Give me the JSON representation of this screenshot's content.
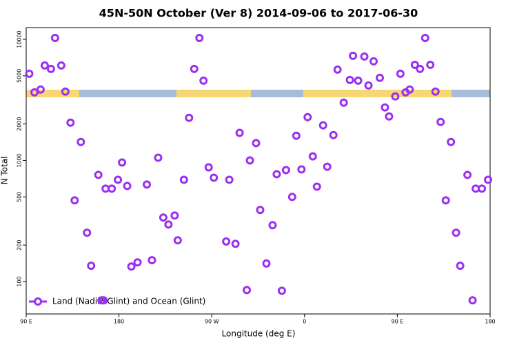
{
  "chart_data": {
    "type": "scatter",
    "title": "45N-50N October (Ver 8)   2014-09-06 to 2017-06-30",
    "x_label": "Longitude (deg E)",
    "y_label": "N Total",
    "log_y": true,
    "xlim": [
      90,
      540
    ],
    "ylim": [
      54,
      12500
    ],
    "xticks": [
      {
        "value": 90,
        "label": "90 E"
      },
      180,
      {
        "value": 270,
        "label": "90 W"
      },
      {
        "value": 360,
        "label": "0"
      },
      {
        "value": 450,
        "label": "90 E"
      },
      {
        "value": 540,
        "label": "180"
      }
    ],
    "yticks": [
      100,
      200,
      500,
      1000,
      2000,
      5000,
      10000
    ],
    "legend_position": "lower left",
    "series": [
      {
        "name": "Land (Nadir&Glint) and Ocean (Glint)",
        "color": "#9b30f0",
        "x": [
          93,
          98,
          104,
          108,
          114,
          118,
          124,
          128,
          133,
          143,
          137,
          149,
          153,
          160,
          163,
          165,
          167,
          173,
          179,
          183,
          188,
          192,
          198,
          207,
          212,
          218,
          223,
          228,
          234,
          237,
          243,
          248,
          253,
          258,
          262,
          267,
          272,
          284,
          287,
          293,
          297,
          304,
          307,
          313,
          317,
          323,
          329,
          333,
          338,
          342,
          348,
          352,
          357,
          363,
          368,
          372,
          378,
          382,
          388,
          392,
          398,
          404,
          407,
          412,
          418,
          422,
          427,
          433,
          438,
          442,
          448,
          453,
          458,
          462,
          467,
          472,
          477,
          482,
          487,
          492,
          502,
          497,
          507,
          511,
          518,
          523,
          526,
          532,
          538
        ],
        "values": [
          5200,
          3650,
          3850,
          6080,
          5700,
          10260,
          6080,
          3700,
          2050,
          1420,
          468,
          253,
          135,
          760,
          70,
          70,
          585,
          585,
          693,
          961,
          616,
          133,
          144,
          633,
          150,
          1054,
          338,
          296,
          351,
          219,
          693,
          2250,
          5700,
          10260,
          4560,
          877,
          721,
          214,
          693,
          205,
          1690,
          85,
          1000,
          1390,
          390,
          141,
          292,
          770,
          84,
          833,
          500,
          1600,
          844,
          2280,
          1080,
          608,
          1950,
          888,
          1620,
          5620,
          3000,
          4620,
          7310,
          4560,
          7210,
          4160,
          6580,
          4810,
          2740,
          2310,
          3380,
          5200,
          3650,
          3850,
          6160,
          5700,
          10260,
          6160,
          3700,
          2080,
          1420,
          468,
          253,
          135,
          760,
          70,
          585,
          585,
          693
        ]
      }
    ]
  }
}
